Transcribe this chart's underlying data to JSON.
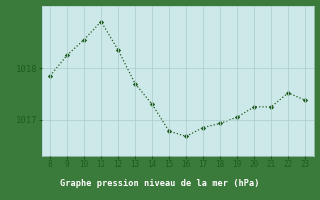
{
  "x": [
    8,
    9,
    10,
    11,
    12,
    13,
    14,
    15,
    16,
    17,
    18,
    19,
    20,
    21,
    22,
    23
  ],
  "y": [
    1017.85,
    1018.25,
    1018.55,
    1018.9,
    1018.35,
    1017.7,
    1017.3,
    1016.78,
    1016.68,
    1016.85,
    1016.93,
    1017.05,
    1017.25,
    1017.25,
    1017.52,
    1017.38
  ],
  "line_color": "#1e5c1e",
  "marker_color": "#1e5c1e",
  "bg_color": "#cce8e8",
  "plot_bg_color": "#cce8e8",
  "bottom_bar_color": "#3a7a3a",
  "grid_color": "#b0d0d0",
  "xlabel": "Graphe pression niveau de la mer (hPa)",
  "xlabel_color": "#ffffff",
  "tick_color": "#1e5c1e",
  "ytick_labels": [
    "1017",
    "1018"
  ],
  "ytick_values": [
    1017.0,
    1018.0
  ],
  "ylim": [
    1016.3,
    1019.2
  ],
  "xlim": [
    7.5,
    23.5
  ],
  "xtick_values": [
    8,
    9,
    10,
    11,
    12,
    13,
    14,
    15,
    16,
    17,
    18,
    19,
    20,
    21,
    22,
    23
  ]
}
